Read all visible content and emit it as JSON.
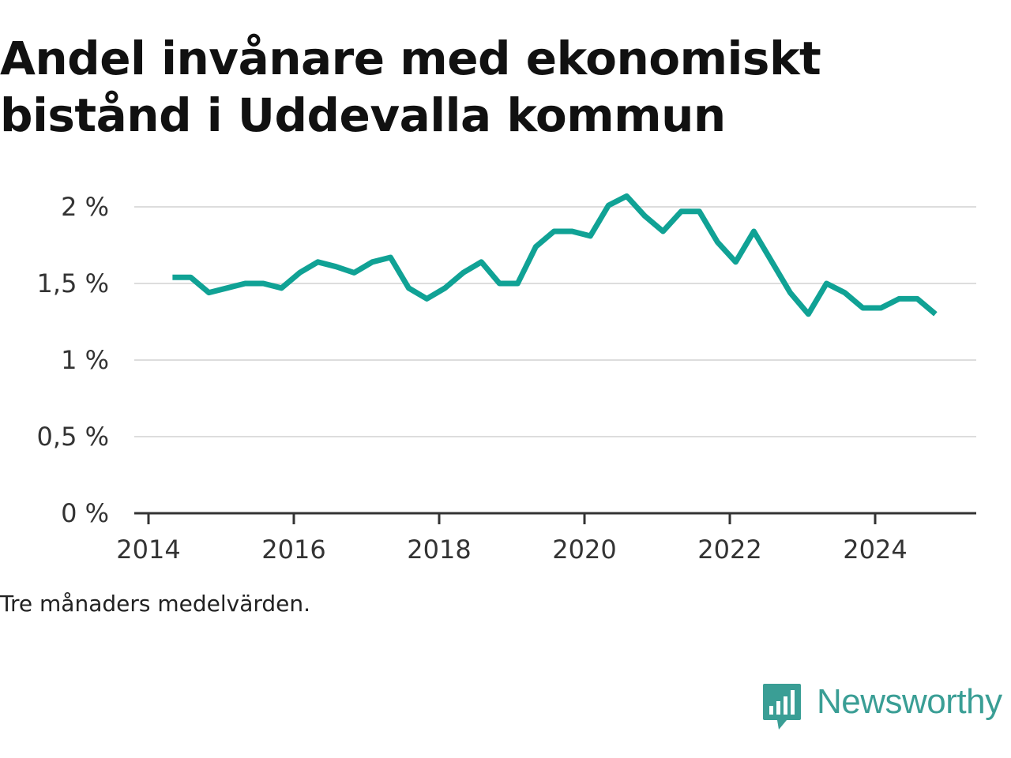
{
  "chart_data": {
    "type": "line",
    "title_lines": [
      "Andel invånare med ekonomiskt",
      "bistånd i Uddevalla kommun"
    ],
    "note": "Tre månaders medelvärden.",
    "xlabel": "",
    "ylabel": "",
    "x_ticks": [
      2014,
      2016,
      2018,
      2020,
      2022,
      2024
    ],
    "x_tick_labels": [
      "2014",
      "2016",
      "2018",
      "2020",
      "2022",
      "2024"
    ],
    "xlim": [
      2014,
      2025.4
    ],
    "y_ticks": [
      0,
      0.5,
      1,
      1.5,
      2
    ],
    "y_tick_labels": [
      "0 %",
      "0,5 %",
      "1 %",
      "1,5 %",
      "2 %"
    ],
    "ylim": [
      0,
      2.1
    ],
    "grid": true,
    "color": "#10a295",
    "series": [
      {
        "x": [
          2014.33,
          2014.58,
          2014.83,
          2015.08,
          2015.33,
          2015.58,
          2015.83,
          2016.08,
          2016.33,
          2016.58,
          2016.83,
          2017.08,
          2017.33,
          2017.58,
          2017.83,
          2018.08,
          2018.33,
          2018.58,
          2018.83,
          2019.08,
          2019.33,
          2019.58,
          2019.83,
          2020.08,
          2020.33,
          2020.58,
          2020.83,
          2021.08,
          2021.33,
          2021.58,
          2021.83,
          2022.08,
          2022.33,
          2022.58,
          2022.83,
          2023.08,
          2023.33,
          2023.58,
          2023.83,
          2024.08,
          2024.33,
          2024.58,
          2024.83
        ],
        "values": [
          1.54,
          1.54,
          1.44,
          1.47,
          1.5,
          1.5,
          1.47,
          1.57,
          1.64,
          1.61,
          1.57,
          1.64,
          1.67,
          1.47,
          1.4,
          1.47,
          1.57,
          1.64,
          1.5,
          1.5,
          1.74,
          1.84,
          1.84,
          1.81,
          2.01,
          2.07,
          1.94,
          1.84,
          1.97,
          1.97,
          1.77,
          1.64,
          1.84,
          1.64,
          1.44,
          1.3,
          1.5,
          1.44,
          1.34,
          1.34,
          1.4,
          1.4,
          1.3
        ]
      }
    ]
  },
  "brand": {
    "name": "Newsworthy",
    "logo_icon": "bar-chart-speech-bubble-icon"
  }
}
